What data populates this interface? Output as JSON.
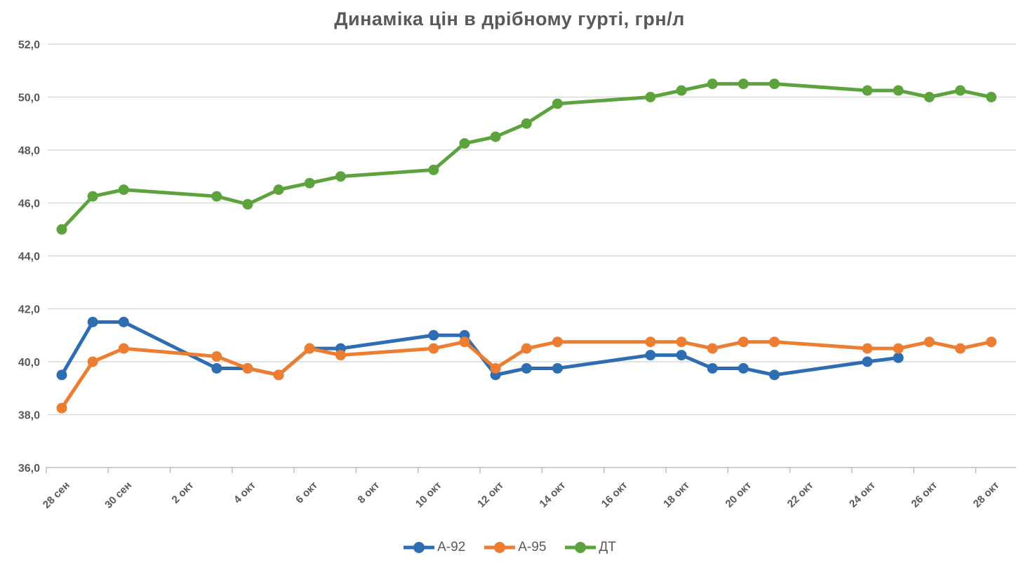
{
  "title": "Динаміка цін в дрібному гурті, грн/л",
  "chart_data": {
    "type": "line",
    "title": "Динаміка цін в дрібному гурті, грн/л",
    "ylabel": "",
    "xlabel": "",
    "ylim": [
      36,
      52
    ],
    "y_tick_values": [
      36,
      38,
      40,
      42,
      44,
      46,
      48,
      50,
      52
    ],
    "y_tick_labels": [
      "36,0",
      "38,0",
      "40,0",
      "42,0",
      "44,0",
      "46,0",
      "48,0",
      "50,0",
      "52,0"
    ],
    "x_tick_labels": [
      "28 сен",
      "30 сен",
      "2 окт",
      "4 окт",
      "6 окт",
      "8 окт",
      "10 окт",
      "12 окт",
      "14 окт",
      "16 окт",
      "18 окт",
      "20 окт",
      "22 окт",
      "24 окт",
      "26 окт",
      "28 окт"
    ],
    "x_tick_day_offsets": [
      0,
      2,
      4,
      6,
      8,
      10,
      12,
      14,
      16,
      18,
      20,
      22,
      24,
      26,
      28,
      30
    ],
    "point_dates": [
      "28 сен",
      "29 сен",
      "30 сен",
      "3 окт",
      "4 окт",
      "5 окт",
      "6 окт",
      "7 окт",
      "10 окт",
      "11 окт",
      "12 окт",
      "13 окт",
      "14 окт",
      "17 окт",
      "18 окт",
      "19 окт",
      "20 окт",
      "21 окт",
      "24 окт",
      "25 окт",
      "26 окт",
      "27 окт",
      "28 окт"
    ],
    "point_day_offsets": [
      0,
      1,
      2,
      5,
      6,
      7,
      8,
      9,
      12,
      13,
      14,
      15,
      16,
      19,
      20,
      21,
      22,
      23,
      26,
      27,
      28,
      29,
      30
    ],
    "grid": true,
    "legend_position": "bottom",
    "series": [
      {
        "name": "А-92",
        "color": "#2E6DB4",
        "values": [
          39.5,
          41.5,
          41.5,
          39.75,
          39.75,
          39.5,
          40.5,
          40.5,
          41.0,
          41.0,
          39.5,
          39.75,
          39.75,
          40.25,
          40.25,
          39.75,
          39.75,
          39.5,
          40.0,
          40.15,
          null,
          null,
          null
        ]
      },
      {
        "name": "А-95",
        "color": "#ED7D31",
        "values": [
          38.25,
          40.0,
          40.5,
          40.2,
          39.75,
          39.5,
          40.5,
          40.25,
          40.5,
          40.75,
          39.75,
          40.5,
          40.75,
          40.75,
          40.75,
          40.5,
          40.75,
          40.75,
          40.5,
          40.5,
          40.75,
          40.5,
          40.75
        ]
      },
      {
        "name": "ДТ",
        "color": "#5CA33D",
        "values": [
          45.0,
          46.25,
          46.5,
          46.25,
          45.95,
          46.5,
          46.75,
          47.0,
          47.25,
          48.25,
          48.5,
          49.0,
          49.75,
          50.0,
          50.25,
          50.5,
          50.5,
          50.5,
          50.25,
          50.25,
          50.0,
          50.25,
          50.0
        ]
      }
    ],
    "colors": {
      "grid": "#D9D9D9",
      "axis": "#BFBFBF",
      "text": "#595959"
    }
  }
}
